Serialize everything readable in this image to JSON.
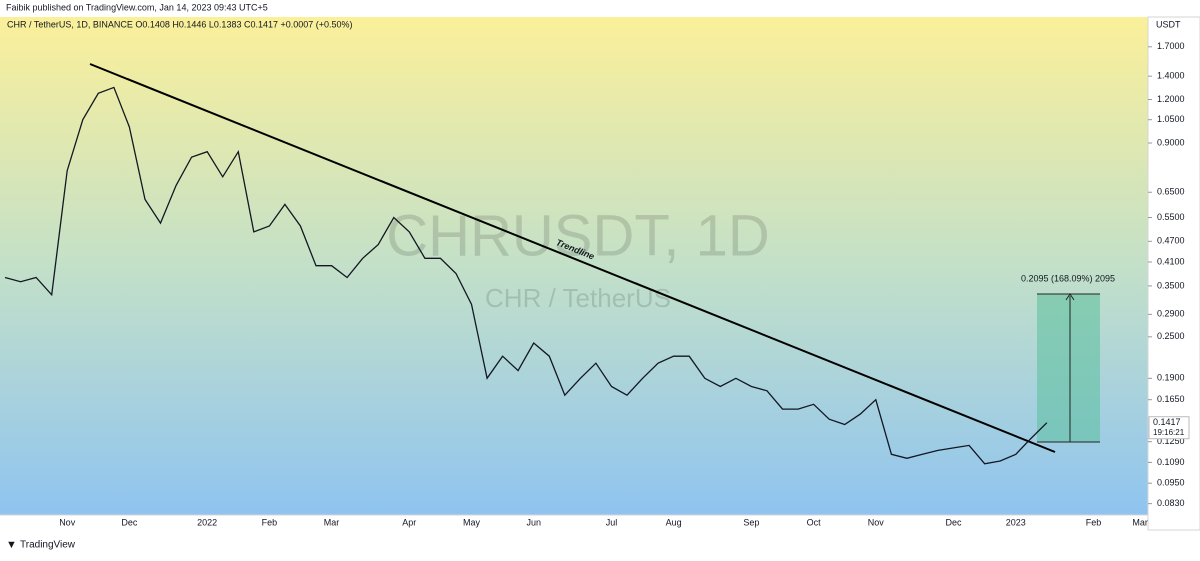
{
  "header": {
    "published": "Faibik published on TradingView.com, Jan 14, 2023 09:43 UTC+5",
    "brand": "TradingView"
  },
  "chart_data": {
    "type": "line",
    "legend_text": "CHR / TetherUS, 1D, BINANCE  O0.1408  H0.1446  L0.1383  C0.1417  +0.0007 (+0.50%)",
    "watermark": [
      "CHRUSDT, 1D",
      "CHR / TetherUS"
    ],
    "annotation": "Trendline",
    "measure_label": "0.2095 (168.09%) 2095",
    "countdown": "19:16:21",
    "y_axis_unit": "USDT",
    "log_scale": true,
    "grid": false,
    "categories": [
      null,
      null,
      null,
      null,
      "Nov",
      null,
      null,
      null,
      "Dec",
      null,
      null,
      null,
      null,
      "2022",
      null,
      null,
      null,
      "Feb",
      null,
      null,
      null,
      "Mar",
      null,
      null,
      null,
      null,
      "Apr",
      null,
      null,
      null,
      "May",
      null,
      null,
      null,
      "Jun",
      null,
      null,
      null,
      null,
      "Jul",
      null,
      null,
      null,
      "Aug",
      null,
      null,
      null,
      null,
      "Sep",
      null,
      null,
      null,
      "Oct",
      null,
      null,
      null,
      "Nov",
      null,
      null,
      null,
      null,
      "Dec",
      null,
      null,
      null,
      "2023",
      null,
      null,
      null,
      null,
      "Feb",
      null,
      null,
      "Mar"
    ],
    "series": [
      {
        "name": "CHRUSDT",
        "color": "#131722",
        "values": [
          0.37,
          0.36,
          0.37,
          0.33,
          0.75,
          1.05,
          1.25,
          1.3,
          1.0,
          0.62,
          0.53,
          0.68,
          0.82,
          0.85,
          0.72,
          0.85,
          0.5,
          0.52,
          0.6,
          0.52,
          0.4,
          0.4,
          0.37,
          0.42,
          0.46,
          0.55,
          0.5,
          0.42,
          0.42,
          0.38,
          0.31,
          0.19,
          0.22,
          0.2,
          0.24,
          0.22,
          0.17,
          0.19,
          0.21,
          0.18,
          0.17,
          0.19,
          0.21,
          0.22,
          0.22,
          0.19,
          0.18,
          0.19,
          0.18,
          0.175,
          0.155,
          0.155,
          0.16,
          0.145,
          0.14,
          0.15,
          0.165,
          0.115,
          0.112,
          0.115,
          0.118,
          0.12,
          0.122,
          0.108,
          0.11,
          0.115,
          0.128,
          0.1417,
          null,
          null,
          null,
          null,
          null,
          null
        ]
      }
    ],
    "ylim": [
      0.077,
      2.07
    ],
    "yticks": [
      {
        "value": 1.7,
        "label": "1.7000"
      },
      {
        "value": 1.4,
        "label": "1.4000"
      },
      {
        "value": 1.2,
        "label": "1.2000"
      },
      {
        "value": 1.05,
        "label": "1.0500"
      },
      {
        "value": 0.9,
        "label": "0.9000"
      },
      {
        "value": 0.65,
        "label": "0.6500"
      },
      {
        "value": 0.55,
        "label": "0.5500"
      },
      {
        "value": 0.47,
        "label": "0.4700"
      },
      {
        "value": 0.41,
        "label": "0.4100"
      },
      {
        "value": 0.35,
        "label": "0.3500"
      },
      {
        "value": 0.29,
        "label": "0.2900"
      },
      {
        "value": 0.25,
        "label": "0.2500"
      },
      {
        "value": 0.19,
        "label": "0.1900"
      },
      {
        "value": 0.165,
        "label": "0.1650"
      },
      {
        "value": 0.125,
        "label": "0.1250"
      },
      {
        "value": 0.109,
        "label": "0.1090"
      },
      {
        "value": 0.095,
        "label": "0.0950"
      },
      {
        "value": 0.083,
        "label": "0.0830"
      }
    ]
  }
}
